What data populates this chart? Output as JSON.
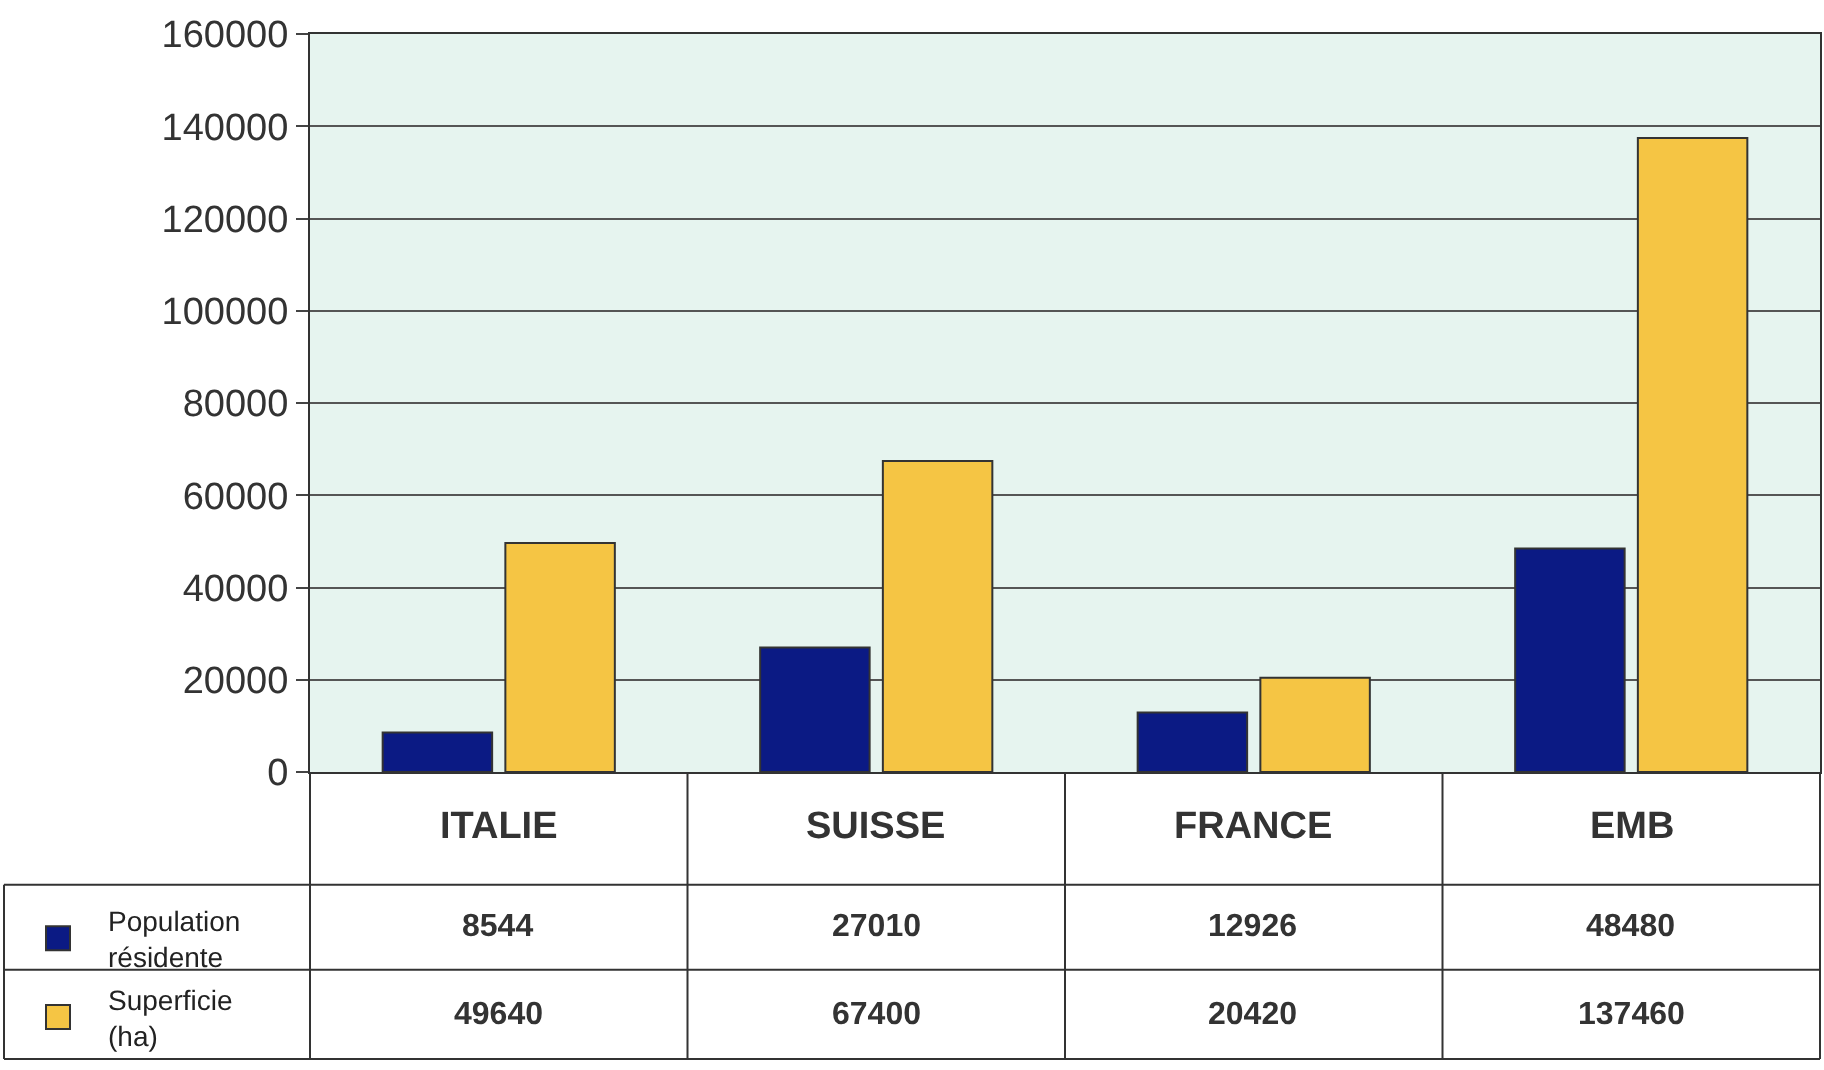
{
  "chart_data": {
    "type": "bar",
    "categories": [
      "ITALIE",
      "SUISSE",
      "FRANCE",
      "EMB"
    ],
    "series": [
      {
        "name": "Population résidente",
        "color": "#0b1a84",
        "values": [
          8544,
          27010,
          12926,
          48480
        ]
      },
      {
        "name": "Superficie (ha)",
        "color": "#f5c544",
        "values": [
          49640,
          67400,
          20420,
          137460
        ]
      }
    ],
    "ylim": [
      0,
      160000
    ],
    "yticks": [
      0,
      20000,
      40000,
      60000,
      80000,
      100000,
      120000,
      140000,
      160000
    ],
    "grid": "y",
    "legend": "bottom left",
    "data_labels": true
  }
}
